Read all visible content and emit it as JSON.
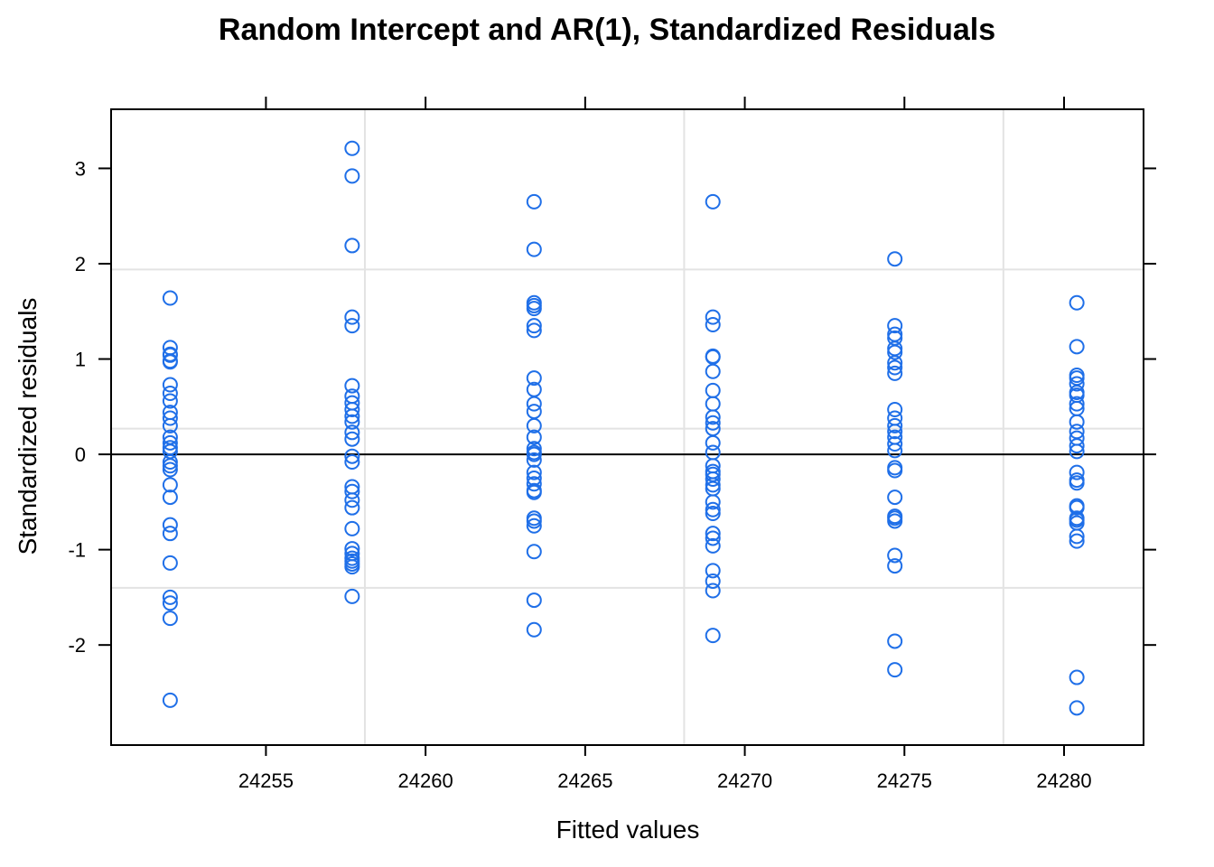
{
  "chart_data": {
    "type": "scatter",
    "title": "Random Intercept and AR(1), Standardized Residuals",
    "xlabel": "Fitted values",
    "ylabel": "Standardized residuals",
    "xlim": [
      24250.15,
      24282.49
    ],
    "ylim": [
      -3.05,
      3.62
    ],
    "x_ticks": [
      24255,
      24260,
      24265,
      24270,
      24275,
      24280
    ],
    "y_ticks": [
      -2,
      -1,
      0,
      1,
      2,
      3
    ],
    "grid": true,
    "reference_line_y": 0,
    "marker": "open-circle",
    "point_color": "#1f6fe8",
    "series": [
      {
        "x": 24252,
        "y": [
          1.64,
          1.12,
          1.05,
          1.04,
          0.98,
          0.97,
          0.73,
          0.64,
          0.56,
          0.44,
          0.38,
          0.3,
          0.18,
          0.12,
          0.07,
          0.03,
          -0.08,
          -0.12,
          -0.16,
          -0.32,
          -0.45,
          -0.74,
          -0.83,
          -1.14,
          -1.5,
          -1.56,
          -1.72,
          -2.58
        ]
      },
      {
        "x": 24257.7,
        "y": [
          3.21,
          2.92,
          2.19,
          1.44,
          1.35,
          0.72,
          0.61,
          0.54,
          0.47,
          0.4,
          0.34,
          0.23,
          0.16,
          -0.02,
          -0.08,
          -0.34,
          -0.39,
          -0.48,
          -0.56,
          -0.78,
          -0.99,
          -1.04,
          -1.09,
          -1.12,
          -1.15,
          -1.18,
          -1.49
        ]
      },
      {
        "x": 24263.4,
        "y": [
          2.65,
          2.15,
          1.59,
          1.56,
          1.53,
          1.35,
          1.3,
          0.8,
          0.68,
          0.53,
          0.45,
          0.3,
          0.18,
          0.06,
          0.02,
          0.0,
          -0.06,
          -0.19,
          -0.25,
          -0.31,
          -0.38,
          -0.4,
          -0.67,
          -0.7,
          -0.75,
          -1.02,
          -1.53,
          -1.84
        ]
      },
      {
        "x": 24269,
        "y": [
          2.65,
          1.44,
          1.36,
          1.03,
          1.02,
          0.87,
          0.67,
          0.53,
          0.39,
          0.33,
          0.27,
          0.12,
          0.02,
          -0.12,
          -0.18,
          -0.21,
          -0.26,
          -0.32,
          -0.36,
          -0.5,
          -0.58,
          -0.62,
          -0.83,
          -0.88,
          -0.96,
          -1.22,
          -1.33,
          -1.43,
          -1.9
        ]
      },
      {
        "x": 24274.7,
        "y": [
          2.05,
          1.35,
          1.26,
          1.22,
          1.11,
          1.07,
          0.96,
          0.91,
          0.85,
          0.47,
          0.38,
          0.3,
          0.24,
          0.18,
          0.11,
          0.04,
          -0.14,
          -0.17,
          -0.45,
          -0.65,
          -0.67,
          -0.7,
          -1.06,
          -1.17,
          -1.96,
          -2.26
        ]
      },
      {
        "x": 24280.4,
        "y": [
          1.59,
          1.13,
          0.83,
          0.8,
          0.74,
          0.65,
          0.62,
          0.53,
          0.48,
          0.34,
          0.24,
          0.17,
          0.09,
          0.03,
          -0.19,
          -0.27,
          -0.3,
          -0.54,
          -0.56,
          -0.67,
          -0.69,
          -0.72,
          -0.86,
          -0.91,
          -2.34,
          -2.66
        ]
      }
    ]
  }
}
